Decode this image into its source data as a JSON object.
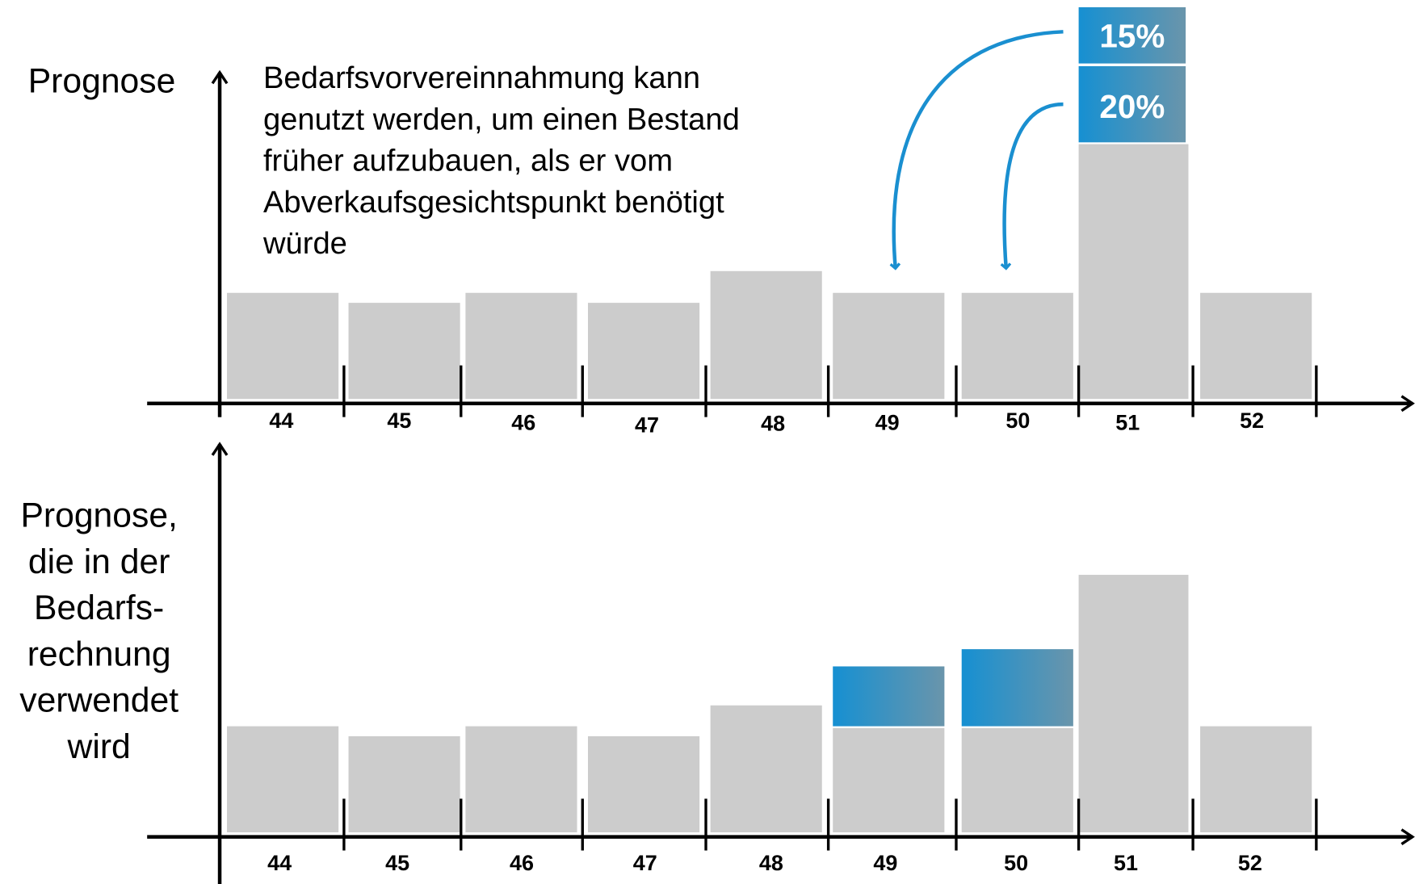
{
  "left_labels": {
    "top": "Prognose",
    "bottom": [
      "Prognose,",
      "die in der",
      "Bedarfs-",
      "rechnung",
      "verwendet",
      "wird"
    ]
  },
  "annotation": [
    "Bedarfsvorvereinnahmung kann",
    "genutzt werden, um einen Bestand",
    "früher aufzubauen, als er vom",
    "Abverkaufsgesichtspunkt benötigt",
    "würde"
  ],
  "shifts": [
    "15%",
    "20%"
  ],
  "weeks_top": [
    "44",
    "45",
    "46",
    "47",
    "48",
    "49",
    "50",
    "51",
    "52"
  ],
  "weeks_bottom": [
    "44",
    "45",
    "46",
    "47",
    "48",
    "49",
    "50",
    "51",
    "52"
  ]
}
